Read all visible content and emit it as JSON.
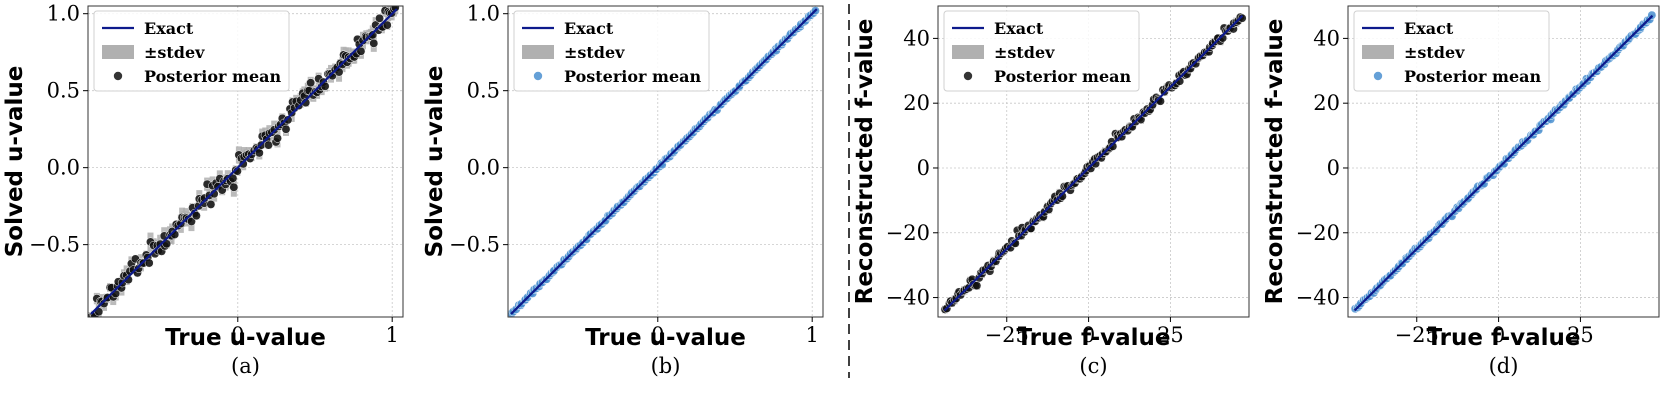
{
  "chart_data": [
    {
      "type": "scatter",
      "caption": "(a)",
      "xlabel": "True u-value",
      "ylabel": "Solved u-value",
      "xlim": [
        -0.97,
        1.07
      ],
      "ylim": [
        -0.97,
        1.05
      ],
      "xticks": [
        0,
        1
      ],
      "xtick_labels": [
        "0",
        "1"
      ],
      "yticks": [
        -0.5,
        0.0,
        0.5,
        1.0
      ],
      "ytick_labels": [
        "−0.5",
        "0.0",
        "0.5",
        "1.0"
      ],
      "grid": true,
      "legend_position": "upper-left",
      "legend": [
        "Exact",
        "±stdev",
        "Posterior mean"
      ],
      "exact_line": [
        -0.95,
        1.03
      ],
      "scatter_color": "#111111",
      "band_color": "#b0b0b0",
      "line_color": "#0d1a8c",
      "noise": 0.035,
      "err": 0.04,
      "n_points": 170
    },
    {
      "type": "scatter",
      "caption": "(b)",
      "xlabel": "True u-value",
      "ylabel": "Solved u-value",
      "xlim": [
        -0.97,
        1.07
      ],
      "ylim": [
        -0.97,
        1.05
      ],
      "xticks": [
        0,
        1
      ],
      "xtick_labels": [
        "0",
        "1"
      ],
      "yticks": [
        -0.5,
        0.0,
        0.5,
        1.0
      ],
      "ytick_labels": [
        "−0.5",
        "0.0",
        "0.5",
        "1.0"
      ],
      "grid": true,
      "legend_position": "upper-left",
      "legend": [
        "Exact",
        "±stdev",
        "Posterior mean"
      ],
      "exact_line": [
        -0.95,
        1.03
      ],
      "scatter_color": "#4a8fd0",
      "band_color": "#b0b0b0",
      "line_color": "#0d1a8c",
      "noise": 0.004,
      "err": 0.006,
      "n_points": 150
    },
    {
      "type": "scatter",
      "caption": "(c)",
      "xlabel": "True f-value",
      "ylabel": "Reconstructed f-value",
      "xlim": [
        -46,
        49
      ],
      "ylim": [
        -46,
        50
      ],
      "xticks": [
        -25,
        0,
        25
      ],
      "xtick_labels": [
        "−25",
        "0",
        "25"
      ],
      "yticks": [
        -40,
        -20,
        0,
        20,
        40
      ],
      "ytick_labels": [
        "−40",
        "−20",
        "0",
        "20",
        "40"
      ],
      "grid": true,
      "legend_position": "upper-left",
      "legend": [
        "Exact",
        "±stdev",
        "Posterior mean"
      ],
      "exact_line": [
        -44,
        47
      ],
      "scatter_color": "#111111",
      "band_color": "#b0b0b0",
      "line_color": "#0d1a8c",
      "noise": 0.7,
      "err": 0.9,
      "n_points": 170
    },
    {
      "type": "scatter",
      "caption": "(d)",
      "xlabel": "True f-value",
      "ylabel": "Reconstructed f-value",
      "xlim": [
        -46,
        49
      ],
      "ylim": [
        -46,
        50
      ],
      "xticks": [
        -25,
        0,
        25
      ],
      "xtick_labels": [
        "−25",
        "0",
        "25"
      ],
      "yticks": [
        -40,
        -20,
        0,
        20,
        40
      ],
      "ytick_labels": [
        "−40",
        "−20",
        "0",
        "20",
        "40"
      ],
      "grid": true,
      "legend_position": "upper-left",
      "legend": [
        "Exact",
        "±stdev",
        "Posterior mean"
      ],
      "exact_line": [
        -44,
        47
      ],
      "scatter_color": "#4a8fd0",
      "band_color": "#b0b0b0",
      "line_color": "#0d1a8c",
      "noise": 0.25,
      "err": 0.35,
      "n_points": 150
    }
  ]
}
